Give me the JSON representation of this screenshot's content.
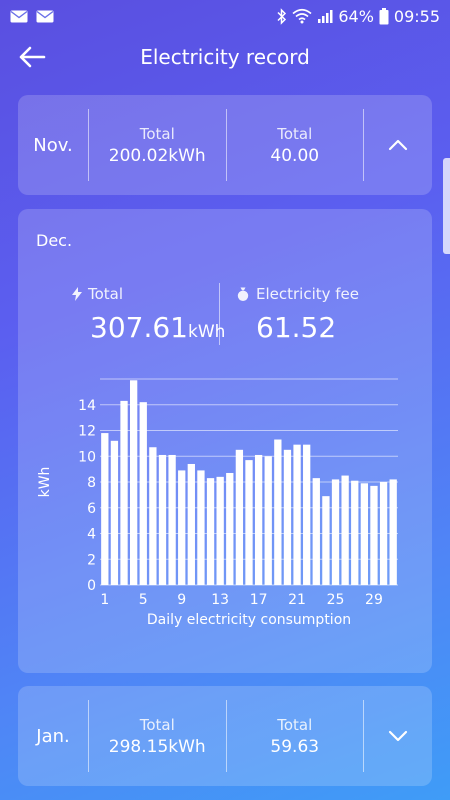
{
  "status_bar": {
    "battery": "64%",
    "time": "09:55",
    "icons": [
      "mail-icon",
      "mail-icon",
      "bluetooth-icon",
      "wifi-icon",
      "signal-icon",
      "battery-icon"
    ]
  },
  "header": {
    "title": "Electricity record",
    "back_icon": "arrow-left-icon"
  },
  "records": {
    "nov": {
      "month": "Nov.",
      "total_label": "Total",
      "total_value": "200.02kWh",
      "fee_label": "Total",
      "fee_value": "40.00",
      "toggle_icon": "chevron-up-icon"
    },
    "dec": {
      "month": "Dec.",
      "total_label": "Total",
      "total_value": "307.61",
      "total_unit": "kWh",
      "fee_label": "Electricity fee",
      "fee_value": "61.52"
    },
    "jan": {
      "month": "Jan.",
      "total_label": "Total",
      "total_value": "298.15kWh",
      "fee_label": "Total",
      "fee_value": "59.63",
      "toggle_icon": "chevron-down-icon"
    }
  },
  "chart_data": {
    "type": "bar",
    "x": [
      1,
      2,
      3,
      4,
      5,
      6,
      7,
      8,
      9,
      10,
      11,
      12,
      13,
      14,
      15,
      16,
      17,
      18,
      19,
      20,
      21,
      22,
      23,
      24,
      25,
      26,
      27,
      28,
      29,
      30,
      31
    ],
    "values": [
      11.8,
      11.2,
      14.3,
      15.9,
      14.2,
      10.7,
      10.1,
      10.1,
      8.9,
      9.4,
      8.9,
      8.3,
      8.4,
      8.7,
      10.5,
      9.7,
      10.1,
      10.0,
      11.3,
      10.5,
      10.9,
      10.9,
      8.3,
      6.9,
      8.2,
      8.5,
      8.1,
      7.9,
      7.7,
      8.0,
      8.2
    ],
    "x_ticks": [
      "1",
      "5",
      "9",
      "13",
      "17",
      "21",
      "25",
      "29"
    ],
    "y_ticks": [
      "0",
      "2",
      "4",
      "6",
      "8",
      "10",
      "12",
      "14"
    ],
    "ylim": [
      0,
      16
    ],
    "ylabel": "kWh",
    "xlabel": "Daily electricity consumption",
    "grid": true,
    "bar_color": "#ffffff"
  },
  "theme": {
    "gradient_start": "#5a4fe0",
    "gradient_end": "#3f9cf7"
  }
}
